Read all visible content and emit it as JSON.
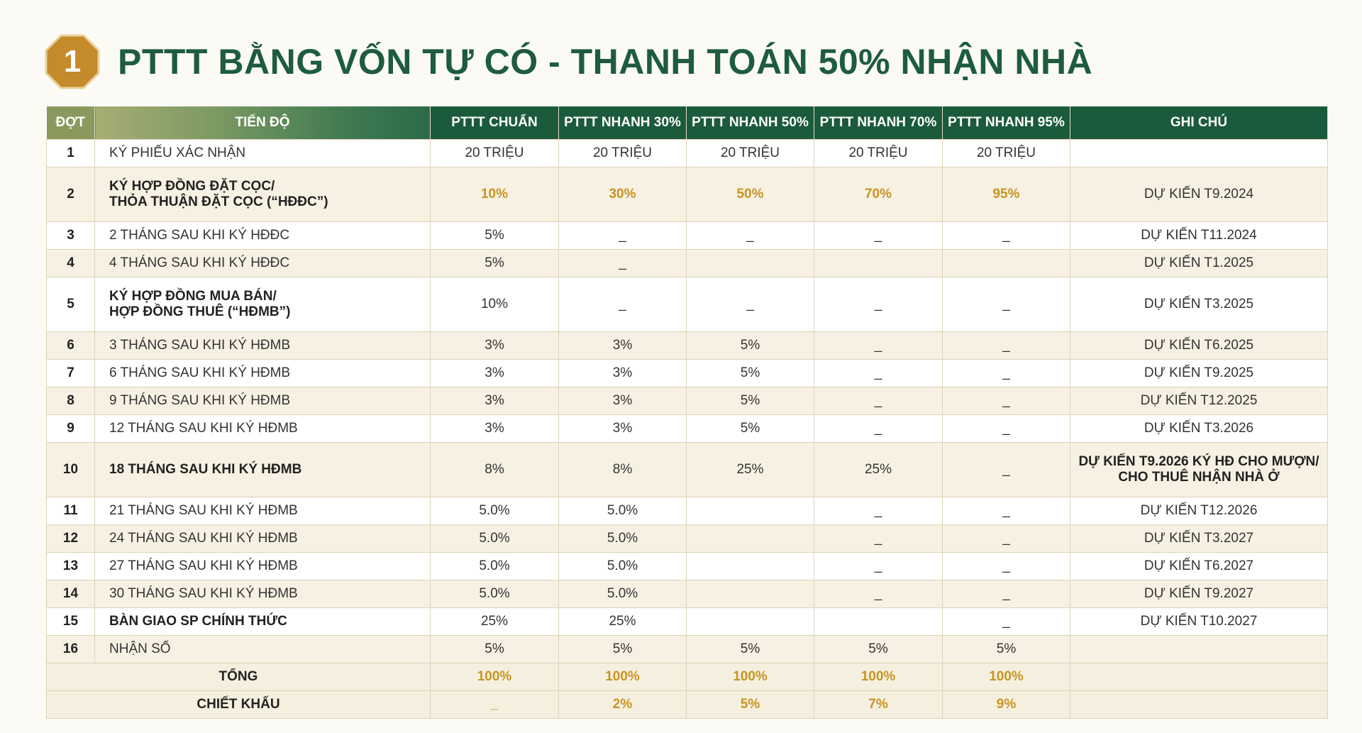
{
  "header": {
    "badge_number": "1",
    "title": "PTTT BẰNG VỐN TỰ CÓ - THANH TOÁN 50% NHẬN NHÀ",
    "accent_color": "#c48a2c",
    "title_color": "#1d5c3e"
  },
  "table": {
    "columns": [
      "ĐỢT",
      "TIẾN ĐỘ",
      "PTTT CHUẨN",
      "PTTT NHANH 30%",
      "PTTT NHANH 50%",
      "PTTT NHANH 70%",
      "PTTT NHANH 95%",
      "GHI CHÚ"
    ],
    "rows": [
      {
        "dot": "1",
        "stage": "KÝ PHIẾU XÁC NHẬN",
        "v": [
          "20 TRIỆU",
          "20 TRIỆU",
          "20 TRIỆU",
          "20 TRIỆU",
          "20 TRIỆU"
        ],
        "note": ""
      },
      {
        "dot": "2",
        "stage": "KÝ HỢP ĐỒNG ĐẶT CỌC/\nTHỎA THUẬN ĐẶT CỌC (“HĐĐC”)",
        "v": [
          "10%",
          "30%",
          "50%",
          "70%",
          "95%"
        ],
        "note": "DỰ KIẾN T9.2024"
      },
      {
        "dot": "3",
        "stage": "2 THÁNG SAU KHI KÝ HĐĐC",
        "v": [
          "5%",
          "_",
          "_",
          "_",
          "_"
        ],
        "note": "DỰ KIẾN T11.2024"
      },
      {
        "dot": "4",
        "stage": "4 THÁNG SAU KHI KÝ HĐĐC",
        "v": [
          "5%",
          "_",
          "",
          "",
          ""
        ],
        "note": "DỰ KIẾN T1.2025"
      },
      {
        "dot": "5",
        "stage": "KÝ HỢP ĐỒNG MUA BÁN/\nHỢP ĐỒNG THUÊ (“HĐMB”)",
        "v": [
          "10%",
          "_",
          "_",
          "_",
          "_"
        ],
        "note": "DỰ KIẾN T3.2025"
      },
      {
        "dot": "6",
        "stage": "3 THÁNG SAU KHI KÝ HĐMB",
        "v": [
          "3%",
          "3%",
          "5%",
          "_",
          "_"
        ],
        "note": "DỰ KIẾN T6.2025"
      },
      {
        "dot": "7",
        "stage": "6 THÁNG SAU KHI KÝ HĐMB",
        "v": [
          "3%",
          "3%",
          "5%",
          "_",
          "_"
        ],
        "note": "DỰ KIẾN T9.2025"
      },
      {
        "dot": "8",
        "stage": "9 THÁNG SAU KHI KÝ HĐMB",
        "v": [
          "3%",
          "3%",
          "5%",
          "_",
          "_"
        ],
        "note": "DỰ KIẾN T12.2025"
      },
      {
        "dot": "9",
        "stage": "12 THÁNG SAU KHI KÝ HĐMB",
        "v": [
          "3%",
          "3%",
          "5%",
          "_",
          "_"
        ],
        "note": "DỰ KIẾN T3.2026"
      },
      {
        "dot": "10",
        "stage": "18 THÁNG SAU KHI KÝ HĐMB",
        "v": [
          "8%",
          "8%",
          "25%",
          "25%",
          "_"
        ],
        "note": "DỰ KIẾN T9.2026 KÝ HĐ CHO MƯỢN/\nCHO THUÊ NHẬN NHÀ Ở"
      },
      {
        "dot": "11",
        "stage": "21 THÁNG SAU KHI KÝ HĐMB",
        "v": [
          "5.0%",
          "5.0%",
          "",
          "_",
          "_"
        ],
        "note": "DỰ KIẾN T12.2026"
      },
      {
        "dot": "12",
        "stage": "24 THÁNG SAU KHI KÝ HĐMB",
        "v": [
          "5.0%",
          "5.0%",
          "",
          "_",
          "_"
        ],
        "note": "DỰ KIẾN T3.2027"
      },
      {
        "dot": "13",
        "stage": "27 THÁNG SAU KHI KÝ HĐMB",
        "v": [
          "5.0%",
          "5.0%",
          "",
          "_",
          "_"
        ],
        "note": "DỰ KIẾN T6.2027"
      },
      {
        "dot": "14",
        "stage": "30 THÁNG SAU KHI KÝ HĐMB",
        "v": [
          "5.0%",
          "5.0%",
          "",
          "_",
          "_"
        ],
        "note": "DỰ KIẾN T9.2027"
      },
      {
        "dot": "15",
        "stage": "BÀN GIAO SP CHÍNH THỨC",
        "v": [
          "25%",
          "25%",
          "",
          "",
          "_"
        ],
        "note": "DỰ KIẾN T10.2027"
      },
      {
        "dot": "16",
        "stage": "NHẬN SỔ",
        "v": [
          "5%",
          "5%",
          "5%",
          "5%",
          "5%"
        ],
        "note": ""
      }
    ],
    "total": {
      "label": "TỔNG",
      "v": [
        "100%",
        "100%",
        "100%",
        "100%",
        "100%"
      ]
    },
    "discount": {
      "label": "CHIẾT KHẤU",
      "v": [
        "_",
        "2%",
        "5%",
        "7%",
        "9%"
      ]
    }
  }
}
